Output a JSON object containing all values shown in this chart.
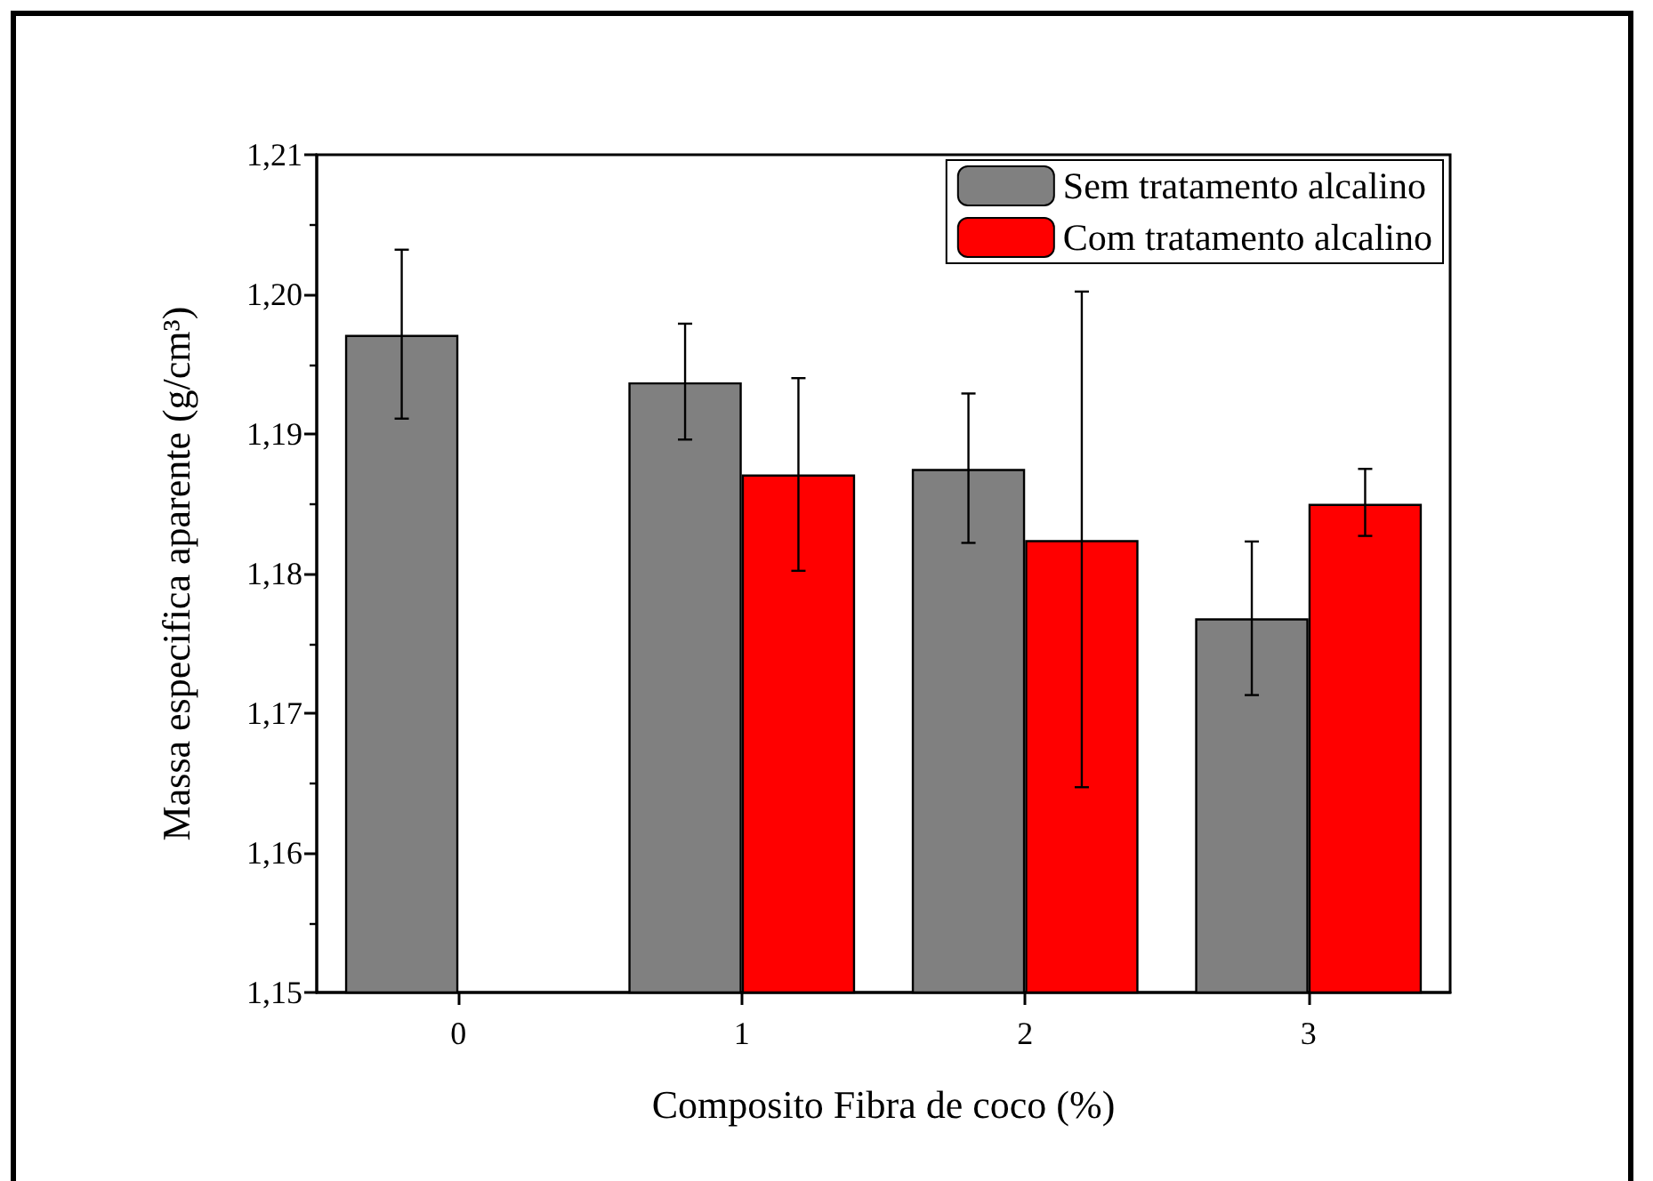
{
  "chart_data": {
    "type": "bar",
    "xlabel": "Composito Fibra de coco (%)",
    "ylabel": "Massa especifica aparente (g/cm³)",
    "categories": [
      "0",
      "1",
      "2",
      "3"
    ],
    "series": [
      {
        "name": "Sem tratamento alcalino",
        "color": "#808080",
        "values": [
          1.1971,
          1.1937,
          1.1875,
          1.1768
        ],
        "errors": [
          [
            1.1911,
            1.2032
          ],
          [
            1.1896,
            1.1979
          ],
          [
            1.1822,
            1.1929
          ],
          [
            1.1713,
            1.1823
          ]
        ]
      },
      {
        "name": "Com tratamento alcalino",
        "color": "#ff0000",
        "values": [
          null,
          1.1871,
          1.1824,
          1.185
        ],
        "errors": [
          null,
          [
            1.1802,
            1.194
          ],
          [
            1.1647,
            1.2002
          ],
          [
            1.1827,
            1.1875
          ]
        ]
      }
    ],
    "ylim": [
      1.15,
      1.21
    ],
    "yticks": [
      {
        "value": 1.15,
        "label": "1,15"
      },
      {
        "value": 1.16,
        "label": "1,16"
      },
      {
        "value": 1.17,
        "label": "1,17"
      },
      {
        "value": 1.18,
        "label": "1,18"
      },
      {
        "value": 1.19,
        "label": "1,19"
      },
      {
        "value": 1.2,
        "label": "1,20"
      },
      {
        "value": 1.21,
        "label": "1,21"
      }
    ],
    "legend": "top right",
    "grid": false
  }
}
